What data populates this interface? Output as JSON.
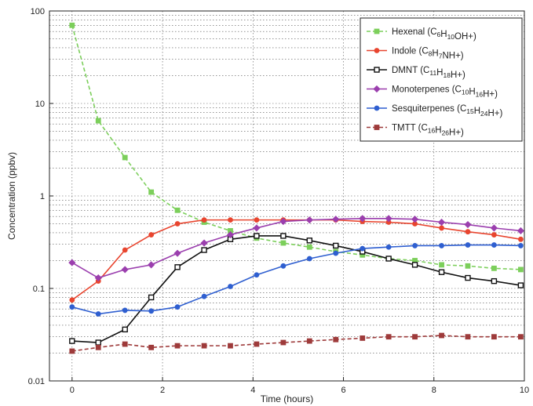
{
  "chart_data": {
    "type": "line",
    "title": "",
    "xlabel": "Time (hours)",
    "ylabel": "Concentration (ppbv)",
    "xlim": [
      -0.5,
      10
    ],
    "ylim": [
      0.01,
      100
    ],
    "yscale": "log",
    "grid": true,
    "legend_position": "top-right",
    "x_ticks": [
      "0",
      "2",
      "4",
      "6",
      "8",
      "10"
    ],
    "y_ticks": [
      "0.01",
      "0.1",
      "1",
      "10",
      "100"
    ],
    "x": [
      0,
      0.58,
      1.17,
      1.75,
      2.33,
      2.92,
      3.5,
      4.08,
      4.67,
      5.25,
      5.83,
      6.42,
      7.0,
      7.58,
      8.17,
      8.75,
      9.33,
      9.92
    ],
    "series": [
      {
        "name": "Hexenal (C6H10OH+)",
        "legend": [
          {
            "t": "Hexenal (C"
          },
          {
            "t": "6",
            "sub": true
          },
          {
            "t": "H"
          },
          {
            "t": "10",
            "sub": true
          },
          {
            "t": "OH+)"
          }
        ],
        "color": "#7ccf5b",
        "marker": "square",
        "dashed": true,
        "values": [
          70,
          6.5,
          2.6,
          1.1,
          0.7,
          0.52,
          0.42,
          0.35,
          0.31,
          0.28,
          0.25,
          0.23,
          0.21,
          0.2,
          0.18,
          0.175,
          0.165,
          0.16
        ]
      },
      {
        "name": "Indole (C8H7NH+)",
        "legend": [
          {
            "t": "Indole (C"
          },
          {
            "t": "8",
            "sub": true
          },
          {
            "t": "H"
          },
          {
            "t": "7",
            "sub": true
          },
          {
            "t": "NH+)"
          }
        ],
        "color": "#e8452f",
        "marker": "dot",
        "dashed": false,
        "values": [
          0.075,
          0.12,
          0.26,
          0.38,
          0.5,
          0.55,
          0.55,
          0.55,
          0.55,
          0.55,
          0.55,
          0.53,
          0.52,
          0.5,
          0.45,
          0.41,
          0.38,
          0.34
        ]
      },
      {
        "name": "DMNT (C11H18H+)",
        "legend": [
          {
            "t": "DMNT (C"
          },
          {
            "t": "11",
            "sub": true
          },
          {
            "t": "H"
          },
          {
            "t": "18",
            "sub": true
          },
          {
            "t": "H+)"
          }
        ],
        "color": "#111111",
        "marker": "open-square",
        "dashed": false,
        "values": [
          0.027,
          0.026,
          0.036,
          0.08,
          0.17,
          0.26,
          0.34,
          0.37,
          0.37,
          0.33,
          0.29,
          0.25,
          0.21,
          0.18,
          0.15,
          0.13,
          0.12,
          0.108
        ]
      },
      {
        "name": "Monoterpenes (C10H16H+)",
        "legend": [
          {
            "t": "Monoterpenes (C"
          },
          {
            "t": "10",
            "sub": true
          },
          {
            "t": "H"
          },
          {
            "t": "16",
            "sub": true
          },
          {
            "t": "H+)"
          }
        ],
        "color": "#9b3fae",
        "marker": "diamond",
        "dashed": false,
        "values": [
          0.19,
          0.13,
          0.16,
          0.18,
          0.24,
          0.31,
          0.38,
          0.45,
          0.53,
          0.55,
          0.56,
          0.57,
          0.57,
          0.56,
          0.52,
          0.49,
          0.45,
          0.42
        ]
      },
      {
        "name": "Sesquiterpenes (C15H24H+)",
        "legend": [
          {
            "t": "Sesquiterpenes (C"
          },
          {
            "t": "15",
            "sub": true
          },
          {
            "t": "H"
          },
          {
            "t": "24",
            "sub": true
          },
          {
            "t": "H+)"
          }
        ],
        "color": "#2f5fd0",
        "marker": "dot",
        "dashed": false,
        "values": [
          0.063,
          0.053,
          0.058,
          0.057,
          0.063,
          0.082,
          0.105,
          0.14,
          0.175,
          0.21,
          0.24,
          0.27,
          0.28,
          0.29,
          0.29,
          0.295,
          0.295,
          0.29
        ]
      },
      {
        "name": "TMTT (C16H26H+)",
        "legend": [
          {
            "t": "TMTT (C"
          },
          {
            "t": "16",
            "sub": true
          },
          {
            "t": "H"
          },
          {
            "t": "26",
            "sub": true
          },
          {
            "t": "H+)"
          }
        ],
        "color": "#9e3b3b",
        "marker": "square",
        "dashed": true,
        "values": [
          0.021,
          0.023,
          0.025,
          0.023,
          0.024,
          0.024,
          0.024,
          0.025,
          0.026,
          0.027,
          0.028,
          0.029,
          0.03,
          0.03,
          0.031,
          0.03,
          0.03,
          0.03
        ]
      }
    ]
  }
}
